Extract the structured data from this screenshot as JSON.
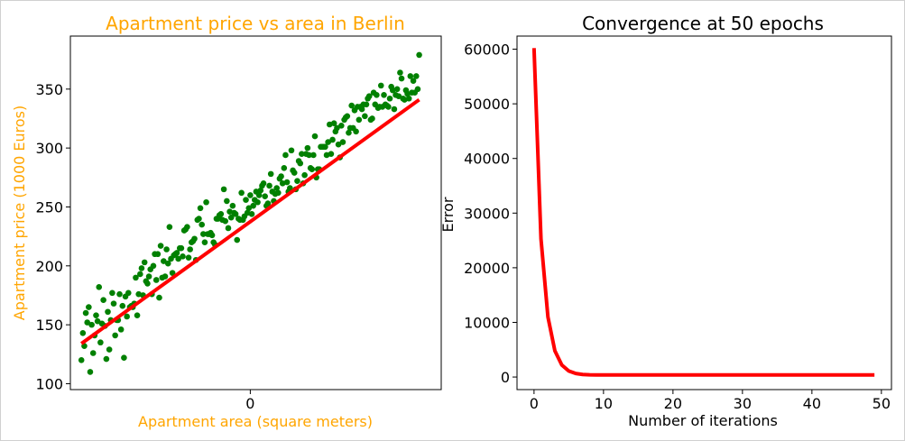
{
  "chart_data": [
    {
      "type": "scatter",
      "title": "Apartment price vs area in Berlin",
      "xlabel": "Apartment area (square meters)",
      "ylabel": "Apartment price (1000 Euros)",
      "label_color": "#ffa500",
      "point_color": "#008000",
      "fit_color": "#ff0000",
      "xlim": [
        -2.45,
        2.6
      ],
      "ylim": [
        95,
        395
      ],
      "xticks": [
        0
      ],
      "yticks": [
        100,
        150,
        200,
        250,
        300,
        350
      ],
      "fit_line": {
        "x": [
          -2.3,
          2.3
        ],
        "y": [
          134,
          341
        ]
      },
      "x": [
        -2.3,
        -2.28,
        -2.26,
        -2.24,
        -2.22,
        -2.2,
        -2.18,
        -2.16,
        -2.14,
        -2.12,
        -2.1,
        -2.08,
        -2.06,
        -2.04,
        -2.02,
        -2.0,
        -1.98,
        -1.96,
        -1.94,
        -1.92,
        -1.9,
        -1.88,
        -1.86,
        -1.84,
        -1.82,
        -1.8,
        -1.78,
        -1.76,
        -1.74,
        -1.72,
        -1.7,
        -1.68,
        -1.66,
        -1.64,
        -1.62,
        -1.6,
        -1.58,
        -1.56,
        -1.54,
        -1.52,
        -1.5,
        -1.48,
        -1.46,
        -1.44,
        -1.42,
        -1.4,
        -1.38,
        -1.36,
        -1.34,
        -1.32,
        -1.3,
        -1.28,
        -1.26,
        -1.24,
        -1.22,
        -1.2,
        -1.18,
        -1.16,
        -1.14,
        -1.12,
        -1.1,
        -1.08,
        -1.06,
        -1.04,
        -1.02,
        -1.0,
        -0.98,
        -0.96,
        -0.94,
        -0.92,
        -0.9,
        -0.88,
        -0.86,
        -0.84,
        -0.82,
        -0.8,
        -0.78,
        -0.76,
        -0.74,
        -0.72,
        -0.7,
        -0.68,
        -0.66,
        -0.64,
        -0.62,
        -0.6,
        -0.58,
        -0.56,
        -0.54,
        -0.52,
        -0.5,
        -0.48,
        -0.46,
        -0.44,
        -0.42,
        -0.4,
        -0.38,
        -0.36,
        -0.34,
        -0.32,
        -0.3,
        -0.28,
        -0.26,
        -0.24,
        -0.22,
        -0.2,
        -0.18,
        -0.16,
        -0.14,
        -0.12,
        -0.1,
        -0.08,
        -0.06,
        -0.04,
        -0.02,
        0.0,
        0.02,
        0.04,
        0.06,
        0.08,
        0.1,
        0.12,
        0.14,
        0.16,
        0.18,
        0.2,
        0.22,
        0.24,
        0.26,
        0.28,
        0.3,
        0.32,
        0.34,
        0.36,
        0.38,
        0.4,
        0.42,
        0.44,
        0.46,
        0.48,
        0.5,
        0.52,
        0.54,
        0.56,
        0.58,
        0.6,
        0.62,
        0.64,
        0.66,
        0.68,
        0.7,
        0.72,
        0.74,
        0.76,
        0.78,
        0.8,
        0.82,
        0.84,
        0.86,
        0.88,
        0.9,
        0.92,
        0.94,
        0.96,
        0.98,
        1.0,
        1.02,
        1.04,
        1.06,
        1.08,
        1.1,
        1.12,
        1.14,
        1.16,
        1.18,
        1.2,
        1.22,
        1.24,
        1.26,
        1.28,
        1.3,
        1.32,
        1.34,
        1.36,
        1.38,
        1.4,
        1.42,
        1.44,
        1.46,
        1.48,
        1.5,
        1.52,
        1.54,
        1.56,
        1.58,
        1.6,
        1.62,
        1.64,
        1.66,
        1.68,
        1.7,
        1.72,
        1.74,
        1.76,
        1.78,
        1.8,
        1.82,
        1.84,
        1.86,
        1.88,
        1.9,
        1.92,
        1.94,
        1.96,
        1.98,
        2.0,
        2.02,
        2.04,
        2.06,
        2.08,
        2.1,
        2.12,
        2.14,
        2.16,
        2.18,
        2.2,
        2.22,
        2.24,
        2.26,
        2.28,
        2.3
      ],
      "y": [
        120,
        143,
        132,
        160,
        152,
        165,
        110,
        150,
        126,
        141,
        158,
        153,
        182,
        135,
        151,
        171,
        149,
        121,
        161,
        129,
        154,
        177,
        168,
        141,
        154,
        154,
        176,
        146,
        166,
        122,
        174,
        157,
        177,
        165,
        166,
        165,
        168,
        190,
        158,
        176,
        193,
        198,
        175,
        203,
        187,
        185,
        191,
        197,
        176,
        200,
        210,
        188,
        210,
        173,
        217,
        190,
        204,
        191,
        214,
        202,
        233,
        206,
        194,
        209,
        210,
        211,
        206,
        215,
        215,
        208,
        230,
        231,
        233,
        207,
        214,
        220,
        221,
        223,
        205,
        239,
        240,
        249,
        235,
        227,
        220,
        254,
        227,
        227,
        228,
        226,
        220,
        218,
        240,
        240,
        243,
        244,
        239,
        265,
        238,
        255,
        232,
        246,
        241,
        251,
        245,
        244,
        222,
        240,
        239,
        262,
        239,
        242,
        256,
        245,
        249,
        260,
        244,
        251,
        256,
        263,
        254,
        260,
        264,
        268,
        270,
        259,
        251,
        253,
        268,
        278,
        263,
        255,
        261,
        266,
        262,
        274,
        276,
        270,
        283,
        294,
        271,
        263,
        266,
        298,
        281,
        279,
        265,
        272,
        289,
        287,
        295,
        270,
        277,
        295,
        300,
        294,
        283,
        282,
        294,
        310,
        275,
        282,
        282,
        301,
        301,
        301,
        301,
        294,
        305,
        320,
        295,
        307,
        321,
        314,
        317,
        303,
        292,
        319,
        305,
        324,
        326,
        327,
        313,
        317,
        336,
        317,
        332,
        314,
        335,
        324,
        335,
        333,
        337,
        327,
        337,
        342,
        344,
        324,
        325,
        347,
        337,
        345,
        334,
        335,
        353,
        335,
        345,
        337,
        336,
        335,
        342,
        352,
        349,
        333,
        345,
        350,
        344,
        364,
        359,
        342,
        341,
        349,
        346,
        342,
        361,
        347,
        357,
        347,
        361,
        350,
        379
      ]
    },
    {
      "type": "line",
      "title": "Convergence at 50 epochs",
      "xlabel": "Number of iterations",
      "ylabel": "Error",
      "line_color": "#ff0000",
      "xlim": [
        -2.45,
        51.45
      ],
      "ylim": [
        -2300,
        62400
      ],
      "xticks": [
        0,
        10,
        20,
        30,
        40,
        50
      ],
      "yticks": [
        0,
        10000,
        20000,
        30000,
        40000,
        50000,
        60000
      ],
      "x": [
        0,
        1,
        2,
        3,
        4,
        5,
        6,
        7,
        8,
        9,
        10,
        11,
        12,
        13,
        14,
        15,
        16,
        17,
        18,
        19,
        20,
        21,
        22,
        23,
        24,
        25,
        26,
        27,
        28,
        29,
        30,
        31,
        32,
        33,
        34,
        35,
        36,
        37,
        38,
        39,
        40,
        41,
        42,
        43,
        44,
        45,
        46,
        47,
        48,
        49
      ],
      "y": [
        60200,
        25300,
        11000,
        4800,
        2200,
        1100,
        650,
        470,
        410,
        390,
        385,
        385,
        385,
        385,
        385,
        385,
        385,
        385,
        385,
        385,
        385,
        385,
        385,
        385,
        385,
        385,
        385,
        385,
        385,
        385,
        385,
        385,
        385,
        385,
        385,
        385,
        385,
        385,
        385,
        385,
        385,
        385,
        385,
        385,
        385,
        385,
        385,
        385,
        385,
        385
      ]
    }
  ]
}
